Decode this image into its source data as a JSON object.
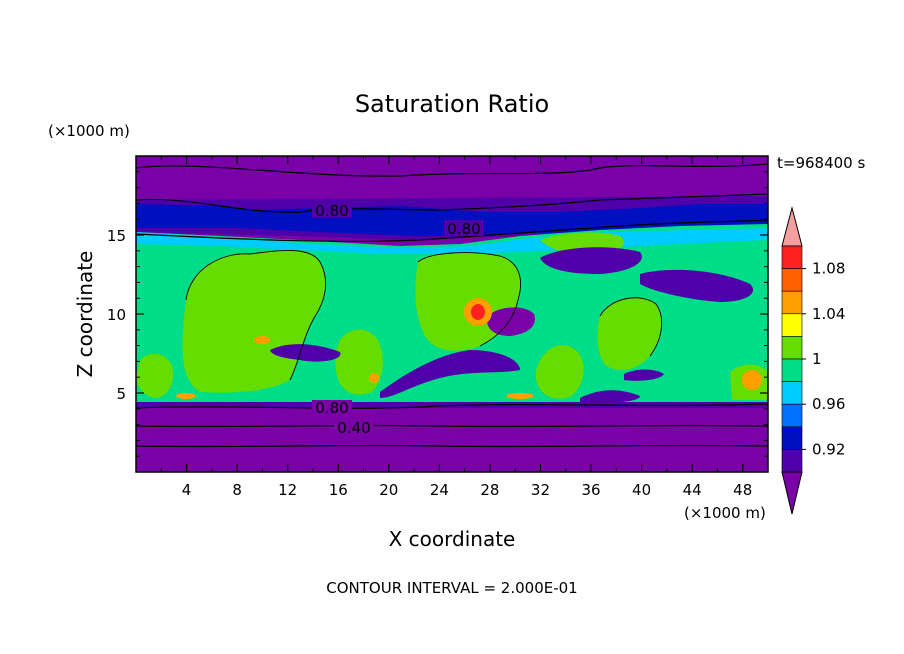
{
  "chart_data": {
    "type": "heatmap",
    "title": "Saturation Ratio",
    "xlabel": "X coordinate",
    "ylabel": "Z coordinate",
    "x_unit": "(×1000 m)",
    "y_unit": "(×1000 m)",
    "time_label": "t=968400 s",
    "footer": "CONTOUR INTERVAL = 2.000E-01",
    "xlim": [
      0,
      50
    ],
    "ylim": [
      0,
      20
    ],
    "x_ticks": [
      "4",
      "8",
      "12",
      "16",
      "20",
      "24",
      "28",
      "32",
      "36",
      "40",
      "44",
      "48"
    ],
    "y_ticks": [
      "5",
      "10",
      "15"
    ],
    "colorbar_labels": [
      "1.08",
      "1.04",
      "1",
      "0.96",
      "0.92"
    ],
    "colorbar_colors": [
      "#f4a0a0",
      "#ff2020",
      "#ff6000",
      "#ffa000",
      "#ffff00",
      "#66dd00",
      "#00dd88",
      "#00ccff",
      "#0070ff",
      "#0010c0",
      "#5000a8",
      "#7a00a8"
    ],
    "contour_labels": [
      "0.80",
      "0.80",
      "0.80",
      "0.40"
    ],
    "colors": {
      "below_0_92": "#7a00a8",
      "band_0_92": "#5000a8",
      "band_0_96_low": "#0010c0",
      "band_0_96": "#0070ff",
      "band_0_98": "#00ccff",
      "band_1_00": "#00dd88",
      "band_1_02": "#66dd00",
      "band_1_04": "#ffff00",
      "band_1_06": "#ffa000",
      "band_1_08": "#ff2020"
    }
  }
}
